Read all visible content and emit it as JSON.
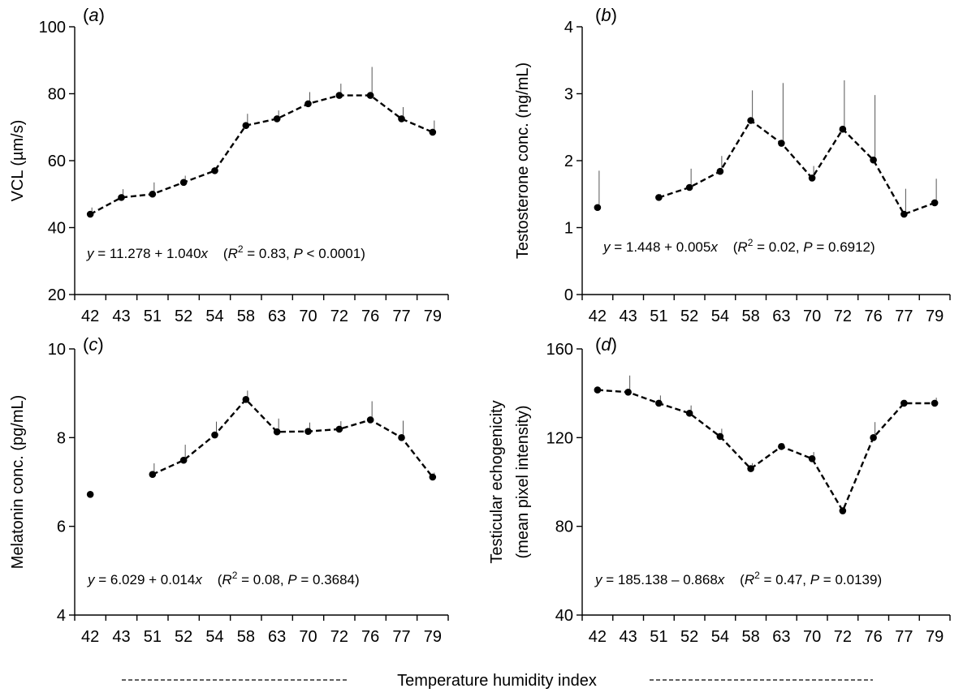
{
  "xlabel": "Temperature humidity index",
  "chart_data": [
    {
      "type": "line",
      "panel": "(a)",
      "ylabel": "VCL (µm/s)",
      "ylim": [
        20,
        100
      ],
      "yticks": [
        20,
        40,
        60,
        80,
        100
      ],
      "categories": [
        "42",
        "43",
        "51",
        "52",
        "54",
        "58",
        "63",
        "70",
        "72",
        "76",
        "77",
        "79"
      ],
      "values": [
        44,
        49,
        50,
        53.5,
        57,
        70.5,
        72.5,
        77,
        79.5,
        79.5,
        72.5,
        68.5
      ],
      "errors": [
        2,
        2.5,
        3.5,
        2,
        1,
        3.5,
        2.5,
        3.5,
        3.5,
        8.5,
        3.5,
        3.5
      ],
      "line_from": 0,
      "equation": {
        "y": "y",
        "rhs": " = 11.278 + 1.040",
        "x": "x",
        "stats_open": "    (",
        "r": "R",
        "sup": "2",
        "mid": " = 0.83, ",
        "p": "P",
        "stats_close": " < 0.0001)"
      }
    },
    {
      "type": "line",
      "panel": "(b)",
      "ylabel": "Testosterone conc. (ng/mL)",
      "ylim": [
        0,
        4
      ],
      "yticks": [
        0,
        1,
        2,
        3,
        4
      ],
      "categories": [
        "42",
        "43",
        "51",
        "52",
        "54",
        "58",
        "63",
        "70",
        "72",
        "76",
        "77",
        "79"
      ],
      "values": [
        1.3,
        null,
        1.45,
        1.6,
        1.84,
        2.6,
        2.26,
        1.74,
        2.47,
        2.01,
        1.2,
        1.37
      ],
      "errors": [
        0.55,
        null,
        0.05,
        0.28,
        0.23,
        0.45,
        0.9,
        0.18,
        0.73,
        0.97,
        0.38,
        0.36
      ],
      "line_from": 2,
      "equation": {
        "y": "y",
        "rhs": " = 1.448 + 0.005",
        "x": "x",
        "stats_open": "    (",
        "r": "R",
        "sup": "2",
        "mid": " = 0.02, ",
        "p": "P",
        "stats_close": " = 0.6912)"
      }
    },
    {
      "type": "line",
      "panel": "(c)",
      "ylabel": "Melatonin conc. (pg/mL)",
      "ylim": [
        4,
        10
      ],
      "yticks": [
        4,
        6,
        8,
        10
      ],
      "categories": [
        "42",
        "43",
        "51",
        "52",
        "54",
        "58",
        "63",
        "70",
        "72",
        "76",
        "77",
        "79"
      ],
      "values": [
        6.72,
        null,
        7.17,
        7.49,
        8.06,
        8.86,
        8.13,
        8.14,
        8.19,
        8.4,
        8.0,
        7.11
      ],
      "errors": [
        0,
        null,
        0.25,
        0.35,
        0.3,
        0.2,
        0.3,
        0.2,
        0.18,
        0.42,
        0.38,
        0.1
      ],
      "line_from": 2,
      "equation": {
        "y": "y",
        "rhs": " = 6.029 + 0.014",
        "x": "x",
        "stats_open": "    (",
        "r": "R",
        "sup": "2",
        "mid": " = 0.08, ",
        "p": "P",
        "stats_close": " = 0.3684)"
      }
    },
    {
      "type": "line",
      "panel": "(d)",
      "ylabel": "Testicular echogenicity",
      "ylabel2": "(mean pixel intensity)",
      "ylim": [
        40,
        160
      ],
      "yticks": [
        40,
        80,
        120,
        160
      ],
      "categories": [
        "42",
        "43",
        "51",
        "52",
        "54",
        "58",
        "63",
        "70",
        "72",
        "76",
        "77",
        "79"
      ],
      "values": [
        141.5,
        140.5,
        135.5,
        131,
        120.5,
        106,
        116,
        110.5,
        87,
        120,
        135.5,
        135.5
      ],
      "errors": [
        1,
        7.5,
        3.5,
        3.5,
        3.5,
        2.5,
        1.5,
        3,
        1,
        7,
        1.5,
        2.5
      ],
      "line_from": 0,
      "equation": {
        "y": "y",
        "rhs": " = 185.138 – 0.868",
        "x": "x",
        "stats_open": "    (",
        "r": "R",
        "sup": "2",
        "mid": " = 0.47, ",
        "p": "P",
        "stats_close": " = 0.0139)"
      }
    }
  ]
}
